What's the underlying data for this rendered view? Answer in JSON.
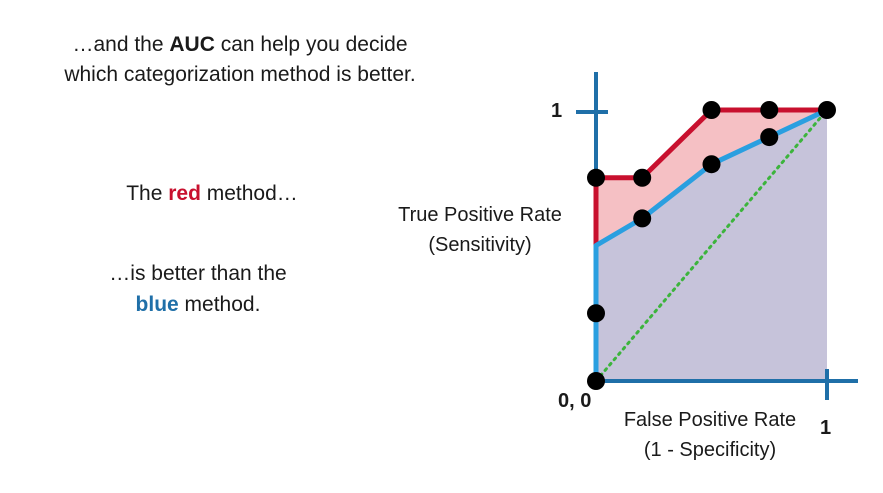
{
  "intro": {
    "line1_prefix": "…and the ",
    "line1_bold": "AUC",
    "line1_suffix": " can help you decide",
    "line2": "which categorization method is better."
  },
  "red_statement": {
    "prefix": "The ",
    "colored": "red",
    "suffix": " method…"
  },
  "blue_statement": {
    "line1": "…is better than the",
    "colored": "blue",
    "suffix": " method."
  },
  "colors": {
    "red": "#c8102e",
    "blue": "#2a9fe0",
    "red_fill": "#f5c0c4",
    "blue_fill": "#c6c3da",
    "axis": "#1f6fa8",
    "diagonal": "#3cb43c",
    "point": "#000000"
  },
  "chart_data": {
    "type": "line",
    "title": "",
    "xlabel_lines": [
      "False Positive Rate",
      "(1 - Specificity)"
    ],
    "ylabel_lines": [
      "True Positive Rate",
      "(Sensitivity)"
    ],
    "xlim": [
      0,
      1
    ],
    "ylim": [
      0,
      1
    ],
    "tick_labels": {
      "origin": "0, 0",
      "x_max": "1",
      "y_max": "1"
    },
    "series": [
      {
        "color": "red",
        "area_filled": true,
        "points": [
          [
            0,
            0
          ],
          [
            0,
            0.25
          ],
          [
            0,
            0.5
          ],
          [
            0,
            0.75
          ],
          [
            0.2,
            0.75
          ],
          [
            0.5,
            1
          ],
          [
            0.75,
            1
          ],
          [
            1,
            1
          ]
        ]
      },
      {
        "color": "blue",
        "area_filled": true,
        "points": [
          [
            0,
            0
          ],
          [
            0,
            0.5
          ],
          [
            0.2,
            0.6
          ],
          [
            0.5,
            0.8
          ],
          [
            0.75,
            0.9
          ],
          [
            1,
            1
          ]
        ]
      }
    ],
    "reference_line": {
      "style": "dotted",
      "color": "green",
      "points": [
        [
          0,
          0
        ],
        [
          1,
          1
        ]
      ]
    },
    "points": [
      [
        0,
        0
      ],
      [
        0,
        0.25
      ],
      [
        0,
        0.75
      ],
      [
        0.2,
        0.75
      ],
      [
        0.2,
        0.6
      ],
      [
        0.5,
        1
      ],
      [
        0.5,
        0.8
      ],
      [
        0.75,
        1
      ],
      [
        0.75,
        0.9
      ],
      [
        1,
        1
      ]
    ]
  }
}
